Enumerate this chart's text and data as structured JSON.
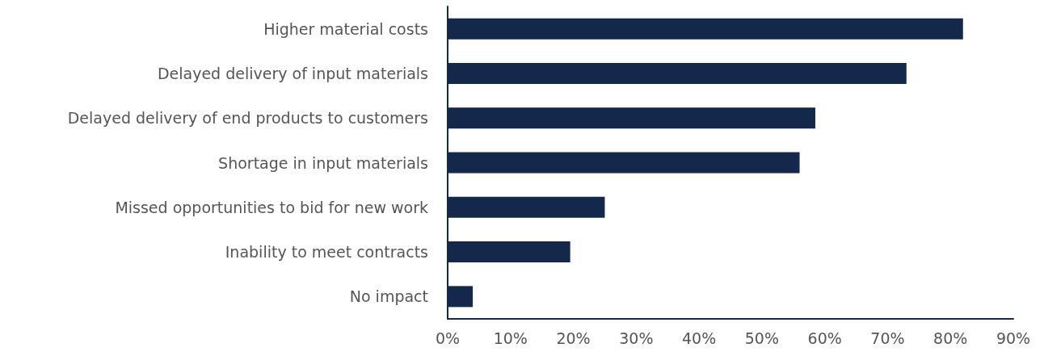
{
  "chart_data": {
    "type": "bar",
    "orientation": "horizontal",
    "categories": [
      "Higher material costs",
      "Delayed delivery of input materials",
      "Delayed delivery of end products to customers",
      "Shortage in input materials",
      "Missed opportunities to bid for new work",
      "Inability to meet contracts",
      "No impact"
    ],
    "values": [
      82,
      73,
      58.5,
      56,
      25,
      19.5,
      4
    ],
    "color": "#14284b",
    "xlim": [
      0,
      90
    ],
    "xticks": [
      {
        "value": 0,
        "label": "0%"
      },
      {
        "value": 10,
        "label": "10%"
      },
      {
        "value": 20,
        "label": "20%"
      },
      {
        "value": 30,
        "label": "30%"
      },
      {
        "value": 40,
        "label": "40%"
      },
      {
        "value": 50,
        "label": "50%"
      },
      {
        "value": 60,
        "label": "60%"
      },
      {
        "value": 70,
        "label": "70%"
      },
      {
        "value": 80,
        "label": "80%"
      },
      {
        "value": 90,
        "label": "90%"
      }
    ],
    "grid": false
  }
}
